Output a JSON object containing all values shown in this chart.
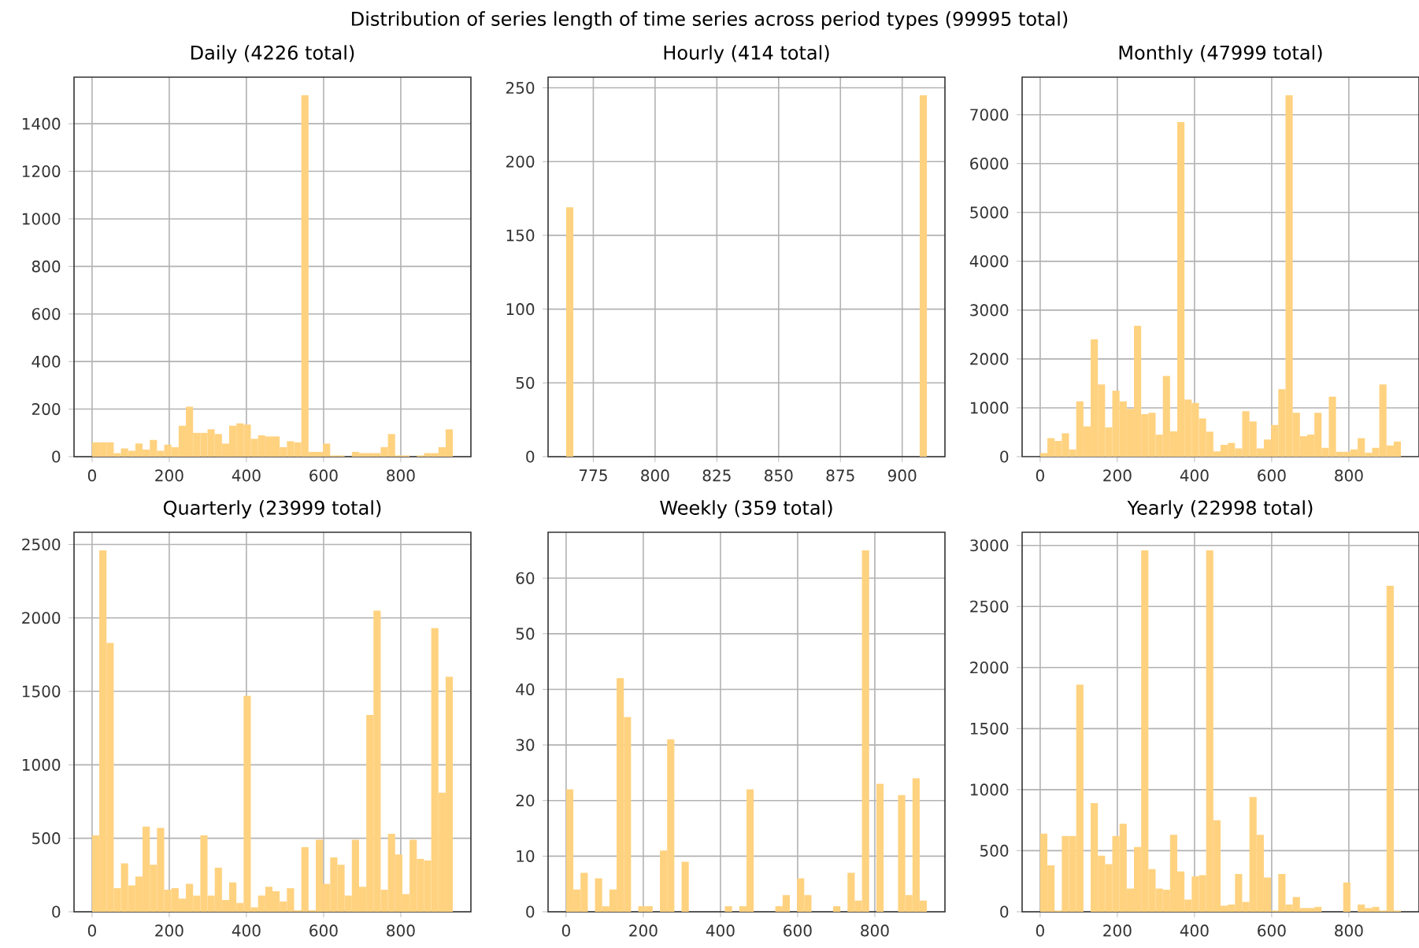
{
  "chart_data": [
    {
      "type": "other",
      "title": "Distribution of series length of time series across period types (99995 total)"
    },
    {
      "type": "histogram",
      "title": "Daily (4226 total)",
      "color": "#ffd280",
      "grid": true,
      "xlim": [
        -46.75,
        981.75
      ],
      "ylim": [
        0,
        1596
      ],
      "xticks": [
        0,
        200,
        400,
        600,
        800
      ],
      "yticks": [
        0,
        200,
        400,
        600,
        800,
        1000,
        1200,
        1400
      ],
      "bins": [
        0,
        18.7,
        37.4,
        56.1,
        74.8,
        93.5,
        112.2,
        130.9,
        149.6,
        168.3,
        187,
        205.7,
        224.4,
        243.1,
        261.8,
        280.5,
        299.2,
        317.9,
        336.6,
        355.3,
        374,
        392.7,
        411.4,
        430.1,
        448.8,
        467.5,
        486.2,
        504.9,
        523.6,
        542.3,
        561,
        579.7,
        598.4,
        617.1,
        635.8,
        654.5,
        673.2,
        691.9,
        710.6,
        729.3,
        748,
        766.7,
        785.4,
        804.1,
        822.8,
        841.5,
        860.2,
        878.9,
        897.6,
        916.3,
        935
      ],
      "values": [
        60,
        60,
        60,
        15,
        35,
        25,
        55,
        30,
        70,
        25,
        50,
        40,
        130,
        210,
        100,
        100,
        115,
        95,
        55,
        130,
        140,
        135,
        75,
        90,
        85,
        85,
        40,
        65,
        60,
        1520,
        20,
        20,
        55,
        5,
        5,
        0,
        20,
        15,
        15,
        15,
        40,
        95,
        5,
        5,
        0,
        5,
        15,
        15,
        40,
        115
      ]
    },
    {
      "type": "histogram",
      "title": "Hourly (414 total)",
      "color": "#ffd280",
      "grid": true,
      "xlim": [
        756.7,
        917.3
      ],
      "ylim": [
        0,
        257.25
      ],
      "xticks": [
        775,
        800,
        825,
        850,
        875,
        900
      ],
      "yticks": [
        0,
        50,
        100,
        150,
        200,
        250
      ],
      "bins": [
        764,
        766.92,
        769.84,
        772.76,
        775.68,
        778.6,
        781.52,
        784.44,
        787.36,
        790.28,
        793.2,
        796.12,
        799.04,
        801.96,
        804.88,
        807.8,
        810.72,
        813.64,
        816.56,
        819.48,
        822.4,
        825.32,
        828.24,
        831.16,
        834.08,
        837,
        839.92,
        842.84,
        845.76,
        848.68,
        851.6,
        854.52,
        857.44,
        860.36,
        863.28,
        866.2,
        869.12,
        872.04,
        874.96,
        877.88,
        880.8,
        883.72,
        886.64,
        889.56,
        892.48,
        895.4,
        898.32,
        901.24,
        904.16,
        907.08,
        910
      ],
      "values": [
        169,
        0,
        0,
        0,
        0,
        0,
        0,
        0,
        0,
        0,
        0,
        0,
        0,
        0,
        0,
        0,
        0,
        0,
        0,
        0,
        0,
        0,
        0,
        0,
        0,
        0,
        0,
        0,
        0,
        0,
        0,
        0,
        0,
        0,
        0,
        0,
        0,
        0,
        0,
        0,
        0,
        0,
        0,
        0,
        0,
        0,
        0,
        0,
        0,
        245
      ]
    },
    {
      "type": "histogram",
      "title": "Monthly (47999 total)",
      "color": "#ffd280",
      "grid": true,
      "xlim": [
        -46.75,
        981.75
      ],
      "ylim": [
        0,
        7770
      ],
      "xticks": [
        0,
        200,
        400,
        600,
        800
      ],
      "yticks": [
        0,
        1000,
        2000,
        3000,
        4000,
        5000,
        6000,
        7000
      ],
      "bins": [
        0,
        18.7,
        37.4,
        56.1,
        74.8,
        93.5,
        112.2,
        130.9,
        149.6,
        168.3,
        187,
        205.7,
        224.4,
        243.1,
        261.8,
        280.5,
        299.2,
        317.9,
        336.6,
        355.3,
        374,
        392.7,
        411.4,
        430.1,
        448.8,
        467.5,
        486.2,
        504.9,
        523.6,
        542.3,
        561,
        579.7,
        598.4,
        617.1,
        635.8,
        654.5,
        673.2,
        691.9,
        710.6,
        729.3,
        748,
        766.7,
        785.4,
        804.1,
        822.8,
        841.5,
        860.2,
        878.9,
        897.6,
        916.3,
        935
      ],
      "values": [
        70,
        380,
        320,
        480,
        150,
        1130,
        620,
        2400,
        1480,
        600,
        1350,
        1130,
        980,
        2680,
        870,
        900,
        450,
        1650,
        520,
        6850,
        1170,
        1100,
        780,
        510,
        110,
        240,
        280,
        170,
        930,
        720,
        170,
        350,
        650,
        1380,
        7400,
        900,
        420,
        450,
        900,
        180,
        1230,
        100,
        100,
        150,
        380,
        80,
        180,
        1480,
        230,
        310
      ]
    },
    {
      "type": "histogram",
      "title": "Quarterly (23999 total)",
      "color": "#ffd280",
      "grid": true,
      "xlim": [
        -46.75,
        981.75
      ],
      "ylim": [
        0,
        2583
      ],
      "xticks": [
        0,
        200,
        400,
        600,
        800
      ],
      "yticks": [
        0,
        500,
        1000,
        1500,
        2000,
        2500
      ],
      "bins": [
        0,
        18.7,
        37.4,
        56.1,
        74.8,
        93.5,
        112.2,
        130.9,
        149.6,
        168.3,
        187,
        205.7,
        224.4,
        243.1,
        261.8,
        280.5,
        299.2,
        317.9,
        336.6,
        355.3,
        374,
        392.7,
        411.4,
        430.1,
        448.8,
        467.5,
        486.2,
        504.9,
        523.6,
        542.3,
        561,
        579.7,
        598.4,
        617.1,
        635.8,
        654.5,
        673.2,
        691.9,
        710.6,
        729.3,
        748,
        766.7,
        785.4,
        804.1,
        822.8,
        841.5,
        860.2,
        878.9,
        897.6,
        916.3,
        935
      ],
      "values": [
        520,
        2460,
        1830,
        160,
        330,
        180,
        240,
        580,
        320,
        570,
        150,
        160,
        90,
        190,
        110,
        520,
        110,
        300,
        80,
        200,
        60,
        1470,
        30,
        110,
        170,
        140,
        70,
        160,
        10,
        440,
        10,
        490,
        190,
        370,
        320,
        110,
        490,
        170,
        1340,
        2050,
        150,
        530,
        390,
        120,
        490,
        360,
        350,
        1930,
        810,
        1600
      ]
    },
    {
      "type": "histogram",
      "title": "Weekly (359 total)",
      "color": "#ffd280",
      "grid": true,
      "xlim": [
        -46.75,
        981.75
      ],
      "ylim": [
        0,
        68.25
      ],
      "xticks": [
        0,
        200,
        400,
        600,
        800
      ],
      "yticks": [
        0,
        10,
        20,
        30,
        40,
        50,
        60
      ],
      "bins": [
        0,
        18.7,
        37.4,
        56.1,
        74.8,
        93.5,
        112.2,
        130.9,
        149.6,
        168.3,
        187,
        205.7,
        224.4,
        243.1,
        261.8,
        280.5,
        299.2,
        317.9,
        336.6,
        355.3,
        374,
        392.7,
        411.4,
        430.1,
        448.8,
        467.5,
        486.2,
        504.9,
        523.6,
        542.3,
        561,
        579.7,
        598.4,
        617.1,
        635.8,
        654.5,
        673.2,
        691.9,
        710.6,
        729.3,
        748,
        766.7,
        785.4,
        804.1,
        822.8,
        841.5,
        860.2,
        878.9,
        897.6,
        916.3,
        935
      ],
      "values": [
        22,
        4,
        7,
        0,
        6,
        1,
        4,
        42,
        35,
        0,
        1,
        1,
        0,
        11,
        31,
        0,
        9,
        0,
        0,
        0,
        0,
        0,
        1,
        0,
        1,
        22,
        0,
        0,
        0,
        1,
        3,
        0,
        6,
        3,
        0,
        0,
        0,
        1,
        0,
        7,
        2,
        65,
        0,
        23,
        0,
        0,
        21,
        3,
        24,
        2
      ]
    },
    {
      "type": "histogram",
      "title": "Yearly (22998 total)",
      "color": "#ffd280",
      "grid": true,
      "xlim": [
        -46.75,
        981.75
      ],
      "ylim": [
        0,
        3108
      ],
      "xticks": [
        0,
        200,
        400,
        600,
        800
      ],
      "yticks": [
        0,
        500,
        1000,
        1500,
        2000,
        2500,
        3000
      ],
      "bins": [
        0,
        18.7,
        37.4,
        56.1,
        74.8,
        93.5,
        112.2,
        130.9,
        149.6,
        168.3,
        187,
        205.7,
        224.4,
        243.1,
        261.8,
        280.5,
        299.2,
        317.9,
        336.6,
        355.3,
        374,
        392.7,
        411.4,
        430.1,
        448.8,
        467.5,
        486.2,
        504.9,
        523.6,
        542.3,
        561,
        579.7,
        598.4,
        617.1,
        635.8,
        654.5,
        673.2,
        691.9,
        710.6,
        729.3,
        748,
        766.7,
        785.4,
        804.1,
        822.8,
        841.5,
        860.2,
        878.9,
        897.6,
        916.3,
        935
      ],
      "values": [
        640,
        380,
        10,
        620,
        620,
        1860,
        0,
        890,
        460,
        390,
        620,
        720,
        190,
        530,
        2960,
        350,
        190,
        180,
        630,
        330,
        100,
        290,
        300,
        2960,
        750,
        50,
        60,
        310,
        80,
        940,
        630,
        280,
        10,
        310,
        60,
        120,
        30,
        30,
        40,
        0,
        0,
        0,
        240,
        0,
        60,
        30,
        40,
        10,
        2670,
        10
      ]
    }
  ]
}
